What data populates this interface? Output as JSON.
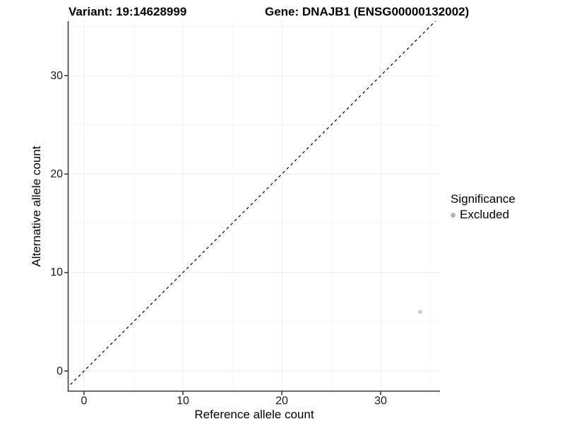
{
  "chart_data": {
    "type": "scatter",
    "title_left": "Variant: 19:14628999",
    "title_right": "Gene: DNAJB1 (ENSG00000132002)",
    "xlabel": "Reference allele count",
    "ylabel": "Alternative allele count",
    "xlim": [
      -1.6,
      36.0
    ],
    "ylim": [
      -2.0,
      35.5
    ],
    "x_ticks": [
      0,
      10,
      20,
      30
    ],
    "y_ticks": [
      0,
      10,
      20,
      30
    ],
    "x_minor_ticks": [
      5,
      15,
      25,
      35
    ],
    "y_minor_ticks": [
      5,
      15,
      25,
      35
    ],
    "grid": "major+minor",
    "reference_line": {
      "kind": "identity y=x",
      "style": "dashed",
      "color": "#000000"
    },
    "series": [
      {
        "name": "Excluded",
        "color": "#c8c8c8",
        "points": [
          [
            34,
            6
          ]
        ]
      }
    ],
    "legend": {
      "position": "right",
      "title": "Significance",
      "entries": [
        {
          "label": "Excluded",
          "color": "#b3b3b3"
        }
      ]
    }
  },
  "style": {
    "axis_color": "#333333",
    "tick_label_color": "#1a1a1a",
    "grid_major_color": "#ececec",
    "grid_minor_color": "#f4f4f4",
    "background": "#ffffff"
  }
}
